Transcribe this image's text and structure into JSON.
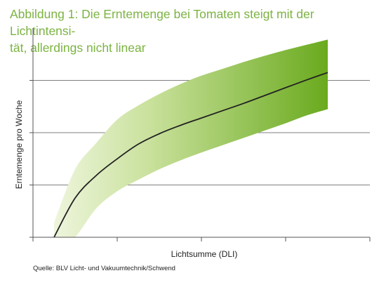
{
  "title": {
    "line1": "Abbildung 1: Die Erntemenge bei Tomaten steigt mit der Lichtintensi-",
    "line2": "tät, allerdings nicht linear"
  },
  "source": "Quelle: BLV Licht- und Vakuumtechnik/Schwend",
  "colors": {
    "title": "#7cb342",
    "band_light": "#eef5dc",
    "band_dark": "#6aaa1e",
    "line": "#222222",
    "grid": "#555555"
  },
  "chart_data": {
    "type": "area",
    "title": "",
    "xlabel": "Lichtsumme (DLI)",
    "ylabel": "Erntemenge pro Woche",
    "xlim": [
      0,
      4
    ],
    "ylim": [
      0,
      4
    ],
    "grid": "horizontal",
    "x": [
      0.25,
      0.5,
      0.75,
      1.0,
      1.25,
      1.5,
      1.75,
      2.0,
      2.25,
      2.5,
      2.75,
      3.0,
      3.25,
      3.5
    ],
    "series": [
      {
        "role": "line",
        "values": [
          0.0,
          0.75,
          1.18,
          1.5,
          1.78,
          1.98,
          2.14,
          2.28,
          2.42,
          2.56,
          2.71,
          2.86,
          3.01,
          3.15
        ]
      },
      {
        "role": "band_upper",
        "values": [
          0.28,
          1.3,
          1.8,
          2.25,
          2.52,
          2.74,
          2.93,
          3.09,
          3.22,
          3.35,
          3.47,
          3.58,
          3.68,
          3.78
        ]
      },
      {
        "role": "band_lower",
        "values": [
          -0.35,
          0.0,
          0.55,
          0.88,
          1.1,
          1.3,
          1.47,
          1.62,
          1.76,
          1.9,
          2.04,
          2.18,
          2.33,
          2.45
        ]
      }
    ]
  }
}
